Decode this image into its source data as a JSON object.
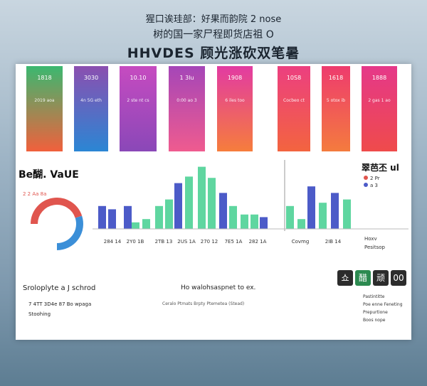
{
  "header": {
    "line1": "猩口诶珪部：好果而韵院 2 nose",
    "line2": "树的国一家尸程即货店祖 O",
    "line3": "HHVDES  顾光涨砍双笔暑"
  },
  "cards": [
    {
      "label": "1818",
      "caption": "2019 aoa",
      "color_top": "#3bb870",
      "color_bottom": "#f1603c"
    },
    {
      "label": "3030",
      "caption": "4n 5G eth",
      "color_top": "#8b4fb0",
      "color_bottom": "#2b86d4"
    },
    {
      "label": "10.10",
      "caption": "2 ste nt cs",
      "color_top": "#c64bc0",
      "color_bottom": "#8a48b8"
    },
    {
      "label": "1 3lu",
      "caption": "0:00 ao 3",
      "color_top": "#a546b8",
      "color_bottom": "#ef5b8f"
    },
    {
      "label": "1908",
      "caption": "6 iles too",
      "color_top": "#e23ba2",
      "color_bottom": "#f67d3c"
    },
    {
      "label": "10S8",
      "caption": "Cocbeo ct",
      "color_top": "#ec3f80",
      "color_bottom": "#f3643f"
    },
    {
      "label": "1618",
      "caption": "5 otox ib",
      "color_top": "#ee3b6e",
      "color_bottom": "#f47b3e"
    },
    {
      "label": "1888",
      "caption": "2 gas 1 ao",
      "color_top": "#e53889",
      "color_bottom": "#ef4b4b"
    }
  ],
  "chart": {
    "title": "Be醐. VaUE",
    "legend_title": "翠芭丕 ul",
    "legend": [
      {
        "name": "2 Pr",
        "color": "#e0554e"
      },
      {
        "name": "a 3",
        "color": "#4c5bc8"
      }
    ],
    "ylim": [
      0,
      100
    ],
    "values": [
      35,
      30,
      35,
      10,
      15,
      35,
      45,
      70,
      80,
      95,
      78,
      55,
      35,
      22,
      22,
      18,
      35,
      15,
      65,
      40,
      55,
      45
    ],
    "colors": [
      "#4c5bc8",
      "#4c5bc8",
      "#4c5bc8",
      "#5fd6a0",
      "#5fd6a0",
      "#5fd6a0",
      "#5fd6a0",
      "#4c5bc8",
      "#5fd6a0",
      "#5fd6a0",
      "#5fd6a0",
      "#4c5bc8",
      "#5fd6a0",
      "#5fd6a0",
      "#5fd6a0",
      "#4c5bc8",
      "#5fd6a0",
      "#5fd6a0",
      "#4c5bc8",
      "#5fd6a0",
      "#4c5bc8",
      "#5fd6a0"
    ],
    "x_labels": [
      "284 14",
      "2Y0 1B",
      "2TB 13",
      "2US 1A",
      "270 12",
      "7E5 1A",
      "282 1A",
      "Covmg",
      "2IB 14"
    ],
    "side_legend": [
      "Hoxv",
      "Pesitsop"
    ],
    "donut": {
      "label": "2 2 Aa 8a",
      "values": [
        60,
        40
      ],
      "colors": [
        "#e0554e",
        "#3b8fd8"
      ]
    }
  },
  "footer": {
    "left_title": "Sroloplyte a J schrod",
    "left_line": "7 4TT 3D4e 87 Bo wpaga",
    "left_line2": "Stoohing",
    "mid_title": "Ho walohsaspnet to ex.",
    "mid_line": "Ceralo  Ptmats  Brpty Ptemetea (Stead)",
    "badges": [
      "쇼",
      "醋",
      "顽",
      "00"
    ],
    "right_items": [
      "Pastintitte",
      "Poe enne Feneting",
      "Prepurtione",
      "Boos nope"
    ]
  }
}
